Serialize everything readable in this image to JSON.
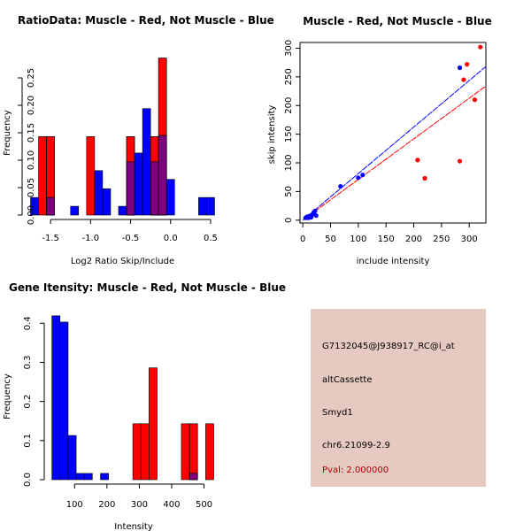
{
  "colors": {
    "red": "#ff0000",
    "blue": "#0000ff",
    "overlap": "#7f007f",
    "panel_bg": "#e6c9c1",
    "pval_text": "#b00000"
  },
  "chart_data": [
    {
      "type": "bar",
      "title": "RatioData: Muscle - Red, Not Muscle - Blue",
      "xlabel": "Log2 Ratio Skip/Include",
      "ylabel": "Frequency",
      "xlim": [
        -1.8,
        0.6
      ],
      "ylim": [
        0,
        0.3
      ],
      "xticks": [
        -1.5,
        -1.0,
        -0.5,
        0.0,
        0.5
      ],
      "xtick_labels": [
        "-1.5",
        "-1.0",
        "-0.5",
        "0.0",
        "0.5"
      ],
      "yticks": [
        0.0,
        0.05,
        0.1,
        0.15,
        0.2,
        0.25
      ],
      "ytick_labels": [
        "0.00",
        "0.05",
        "0.10",
        "0.15",
        "0.20",
        "0.25"
      ],
      "series": [
        {
          "name": "Muscle",
          "color": "red",
          "bins": [
            {
              "x0": -1.65,
              "x1": -1.55,
              "v": 0.143
            },
            {
              "x0": -1.55,
              "x1": -1.45,
              "v": 0.143
            },
            {
              "x0": -1.05,
              "x1": -0.95,
              "v": 0.143
            },
            {
              "x0": -0.55,
              "x1": -0.45,
              "v": 0.143
            },
            {
              "x0": -0.25,
              "x1": -0.15,
              "v": 0.143
            },
            {
              "x0": -0.15,
              "x1": -0.05,
              "v": 0.286
            }
          ]
        },
        {
          "name": "Not Muscle",
          "color": "blue",
          "bins": [
            {
              "x0": -1.75,
              "x1": -1.65,
              "v": 0.032
            },
            {
              "x0": -1.55,
              "x1": -1.45,
              "v": 0.032
            },
            {
              "x0": -1.25,
              "x1": -1.15,
              "v": 0.016
            },
            {
              "x0": -0.95,
              "x1": -0.85,
              "v": 0.081
            },
            {
              "x0": -0.85,
              "x1": -0.75,
              "v": 0.048
            },
            {
              "x0": -0.65,
              "x1": -0.55,
              "v": 0.016
            },
            {
              "x0": -0.55,
              "x1": -0.45,
              "v": 0.097
            },
            {
              "x0": -0.45,
              "x1": -0.35,
              "v": 0.113
            },
            {
              "x0": -0.35,
              "x1": -0.25,
              "v": 0.194
            },
            {
              "x0": -0.25,
              "x1": -0.15,
              "v": 0.097
            },
            {
              "x0": -0.15,
              "x1": -0.05,
              "v": 0.145
            },
            {
              "x0": -0.05,
              "x1": 0.05,
              "v": 0.065
            },
            {
              "x0": 0.35,
              "x1": 0.45,
              "v": 0.032
            },
            {
              "x0": 0.45,
              "x1": 0.55,
              "v": 0.032
            }
          ]
        }
      ]
    },
    {
      "type": "scatter",
      "title": "Muscle - Red, Not Muscle - Blue",
      "xlabel": "include intensity",
      "ylabel": "skip intensity",
      "xlim": [
        -5,
        330
      ],
      "ylim": [
        -5,
        310
      ],
      "xticks": [
        0,
        50,
        100,
        150,
        200,
        250,
        300
      ],
      "xtick_labels": [
        "0",
        "50",
        "100",
        "150",
        "200",
        "250",
        "300"
      ],
      "yticks": [
        0,
        50,
        100,
        150,
        200,
        250,
        300
      ],
      "ytick_labels": [
        "0",
        "50",
        "100",
        "150",
        "200",
        "250",
        "300"
      ],
      "series": [
        {
          "name": "Muscle",
          "color": "red",
          "points": [
            [
              207,
              105
            ],
            [
              220,
              73
            ],
            [
              283,
              103
            ],
            [
              290,
              245
            ],
            [
              296,
              272
            ],
            [
              310,
              210
            ],
            [
              320,
              302
            ]
          ],
          "fit_line": {
            "x0": 0,
            "y0": 0,
            "x1": 330,
            "y1": 234
          }
        },
        {
          "name": "Not Muscle",
          "color": "blue",
          "points": [
            [
              5,
              4
            ],
            [
              8,
              6
            ],
            [
              10,
              4
            ],
            [
              12,
              7
            ],
            [
              15,
              5
            ],
            [
              18,
              10
            ],
            [
              20,
              14
            ],
            [
              22,
              16
            ],
            [
              24,
              8
            ],
            [
              68,
              59
            ],
            [
              100,
              74
            ],
            [
              108,
              79
            ],
            [
              283,
              266
            ]
          ],
          "fit_line": {
            "x0": 0,
            "y0": 0,
            "x1": 330,
            "y1": 268
          }
        }
      ]
    },
    {
      "type": "bar",
      "title": "Gene Itensity: Muscle - Red, Not Muscle - Blue",
      "xlabel": "Intensity",
      "ylabel": "Frequency",
      "xlim": [
        20,
        545
      ],
      "ylim": [
        0,
        0.43
      ],
      "xticks": [
        100,
        200,
        300,
        400,
        500
      ],
      "xtick_labels": [
        "100",
        "200",
        "300",
        "400",
        "500"
      ],
      "yticks": [
        0.0,
        0.1,
        0.2,
        0.3,
        0.4
      ],
      "ytick_labels": [
        "0.0",
        "0.1",
        "0.2",
        "0.3",
        "0.4"
      ],
      "series": [
        {
          "name": "Muscle",
          "color": "red",
          "bins": [
            {
              "x0": 280,
              "x1": 305,
              "v": 0.143
            },
            {
              "x0": 305,
              "x1": 330,
              "v": 0.143
            },
            {
              "x0": 330,
              "x1": 355,
              "v": 0.286
            },
            {
              "x0": 430,
              "x1": 455,
              "v": 0.143
            },
            {
              "x0": 455,
              "x1": 480,
              "v": 0.143
            },
            {
              "x0": 505,
              "x1": 530,
              "v": 0.143
            }
          ]
        },
        {
          "name": "Not Muscle",
          "color": "blue",
          "bins": [
            {
              "x0": 30,
              "x1": 55,
              "v": 0.419
            },
            {
              "x0": 55,
              "x1": 80,
              "v": 0.403
            },
            {
              "x0": 80,
              "x1": 105,
              "v": 0.113
            },
            {
              "x0": 105,
              "x1": 130,
              "v": 0.016
            },
            {
              "x0": 130,
              "x1": 155,
              "v": 0.016
            },
            {
              "x0": 180,
              "x1": 205,
              "v": 0.016
            },
            {
              "x0": 455,
              "x1": 480,
              "v": 0.016
            }
          ]
        }
      ]
    }
  ],
  "info_panel": {
    "probe_id": "G7132045@J938917_RC@i_at",
    "event_type": "altCassette",
    "gene": "Smyd1",
    "location": "chr6.21099-2.9",
    "pval": "Pval: 2.000000"
  }
}
